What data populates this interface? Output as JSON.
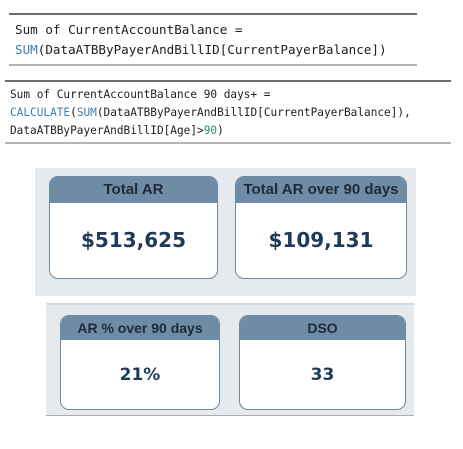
{
  "measures": [
    {
      "line1": "Sum of CurrentAccountBalance =",
      "line2_fn": "SUM",
      "line2_rest": "(DataATBByPayerAndBillID[CurrentPayerBalance])"
    },
    {
      "line1": "Sum of CurrentAccountBalance 90 days+ =",
      "line2_fn1": "CALCULATE",
      "line2_paren": "(",
      "line2_fn2": "SUM",
      "line2_rest": "(DataATBByPayerAndBillID[CurrentPayerBalance]),",
      "line3_text": "DataATBByPayerAndBillID[Age]>",
      "line3_num": "90",
      "line3_close": ")"
    }
  ],
  "kpis": [
    {
      "title": "Total AR",
      "value": "$513,625"
    },
    {
      "title": "Total AR over 90 days",
      "value": "$109,131"
    },
    {
      "title": "AR % over 90 days",
      "value": "21%"
    },
    {
      "title": "DSO",
      "value": "33"
    }
  ],
  "colors": {
    "header_bg": "#6e8ca6",
    "value_text": "#1f3b5c",
    "dax_function": "#3a7fb8",
    "dax_number": "#2b8a62"
  }
}
